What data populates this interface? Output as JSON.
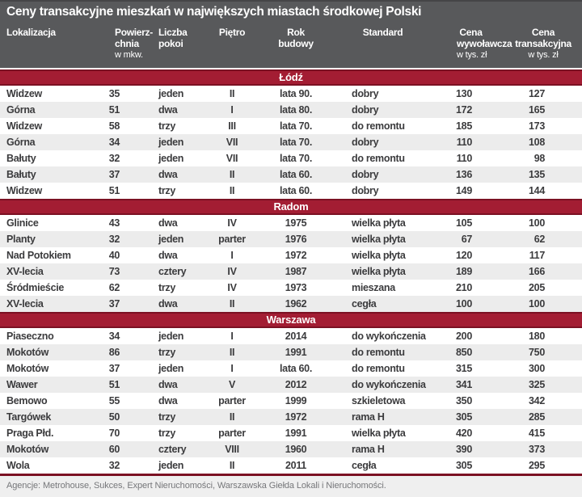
{
  "chart_data": {
    "type": "table",
    "title": "Ceny transakcyjne mieszkań w największych miastach środkowej Polski",
    "columns": [
      "Lokalizacja",
      "Powierzchnia w mkw.",
      "Liczba pokoi",
      "Piętro",
      "Rok budowy",
      "Standard",
      "Cena wywoławcza w tys. zł",
      "Cena transakcyjna w tys. zł"
    ],
    "sections": [
      {
        "name": "Łódź",
        "rows": [
          [
            "Widzew",
            "35",
            "jeden",
            "II",
            "lata 90.",
            "dobry",
            "130",
            "127"
          ],
          [
            "Górna",
            "51",
            "dwa",
            "I",
            "lata 80.",
            "dobry",
            "172",
            "165"
          ],
          [
            "Widzew",
            "58",
            "trzy",
            "III",
            "lata 70.",
            "do remontu",
            "185",
            "173"
          ],
          [
            "Górna",
            "34",
            "jeden",
            "VII",
            "lata 70.",
            "dobry",
            "110",
            "108"
          ],
          [
            "Bałuty",
            "32",
            "jeden",
            "VII",
            "lata 70.",
            "do remontu",
            "110",
            "98"
          ],
          [
            "Bałuty",
            "37",
            "dwa",
            "II",
            "lata 60.",
            "dobry",
            "136",
            "135"
          ],
          [
            "Widzew",
            "51",
            "trzy",
            "II",
            "lata 60.",
            "dobry",
            "149",
            "144"
          ]
        ]
      },
      {
        "name": "Radom",
        "rows": [
          [
            "Glinice",
            "43",
            "dwa",
            "IV",
            "1975",
            "wielka płyta",
            "105",
            "100"
          ],
          [
            "Planty",
            "32",
            "jeden",
            "parter",
            "1976",
            "wielka płyta",
            "67",
            "62"
          ],
          [
            "Nad Potokiem",
            "40",
            "dwa",
            "I",
            "1972",
            "wielka płyta",
            "120",
            "117"
          ],
          [
            "XV-lecia",
            "73",
            "cztery",
            "IV",
            "1987",
            "wielka płyta",
            "189",
            "166"
          ],
          [
            "Śródmieście",
            "62",
            "trzy",
            "IV",
            "1973",
            "mieszana",
            "210",
            "205"
          ],
          [
            "XV-lecia",
            "37",
            "dwa",
            "II",
            "1962",
            "cegła",
            "100",
            "100"
          ]
        ]
      },
      {
        "name": "Warszawa",
        "rows": [
          [
            "Piaseczno",
            "34",
            "jeden",
            "I",
            "2014",
            "do wykończenia",
            "200",
            "180"
          ],
          [
            "Mokotów",
            "86",
            "trzy",
            "II",
            "1991",
            "do remontu",
            "850",
            "750"
          ],
          [
            "Mokotów",
            "37",
            "jeden",
            "I",
            "lata 60.",
            "do remontu",
            "315",
            "300"
          ],
          [
            "Wawer",
            "51",
            "dwa",
            "V",
            "2012",
            "do wykończenia",
            "341",
            "325"
          ],
          [
            "Bemowo",
            "55",
            "dwa",
            "parter",
            "1999",
            "szkieletowa",
            "350",
            "342"
          ],
          [
            "Targówek",
            "50",
            "trzy",
            "II",
            "1972",
            "rama H",
            "305",
            "285"
          ],
          [
            "Praga Płd.",
            "70",
            "trzy",
            "parter",
            "1991",
            "wielka płyta",
            "420",
            "415"
          ],
          [
            "Mokotów",
            "60",
            "cztery",
            "VIII",
            "1960",
            "rama H",
            "390",
            "373"
          ],
          [
            "Wola",
            "32",
            "jeden",
            "II",
            "2011",
            "cegła",
            "305",
            "295"
          ]
        ]
      }
    ],
    "source": "Agencje: Metrohouse, Sukces, Expert Nieruchomości, Warszawska Giełda Lokali i Nieruchomości."
  },
  "columns_display": [
    {
      "lines": [
        "Lokalizacja"
      ],
      "sub": ""
    },
    {
      "lines": [
        "Powierz-",
        "chnia"
      ],
      "sub": "w mkw."
    },
    {
      "lines": [
        "Liczba",
        "pokoi"
      ],
      "sub": ""
    },
    {
      "lines": [
        "Piętro"
      ],
      "sub": ""
    },
    {
      "lines": [
        "Rok",
        "budowy"
      ],
      "sub": ""
    },
    {
      "lines": [
        "Standard"
      ],
      "sub": ""
    },
    {
      "lines": [
        "Cena",
        "wywoławcza"
      ],
      "sub": "w tys. zł"
    },
    {
      "lines": [
        "Cena",
        "transakcyjna"
      ],
      "sub": "w tys. zł"
    }
  ],
  "colors": {
    "header_bg": "#58595B",
    "section_bar_bg": "#A31D33",
    "section_bar_border": "#7B1123",
    "stripe": "#ECECEC",
    "data_text": "#3B3B3D",
    "footer_text": "#76777A"
  }
}
